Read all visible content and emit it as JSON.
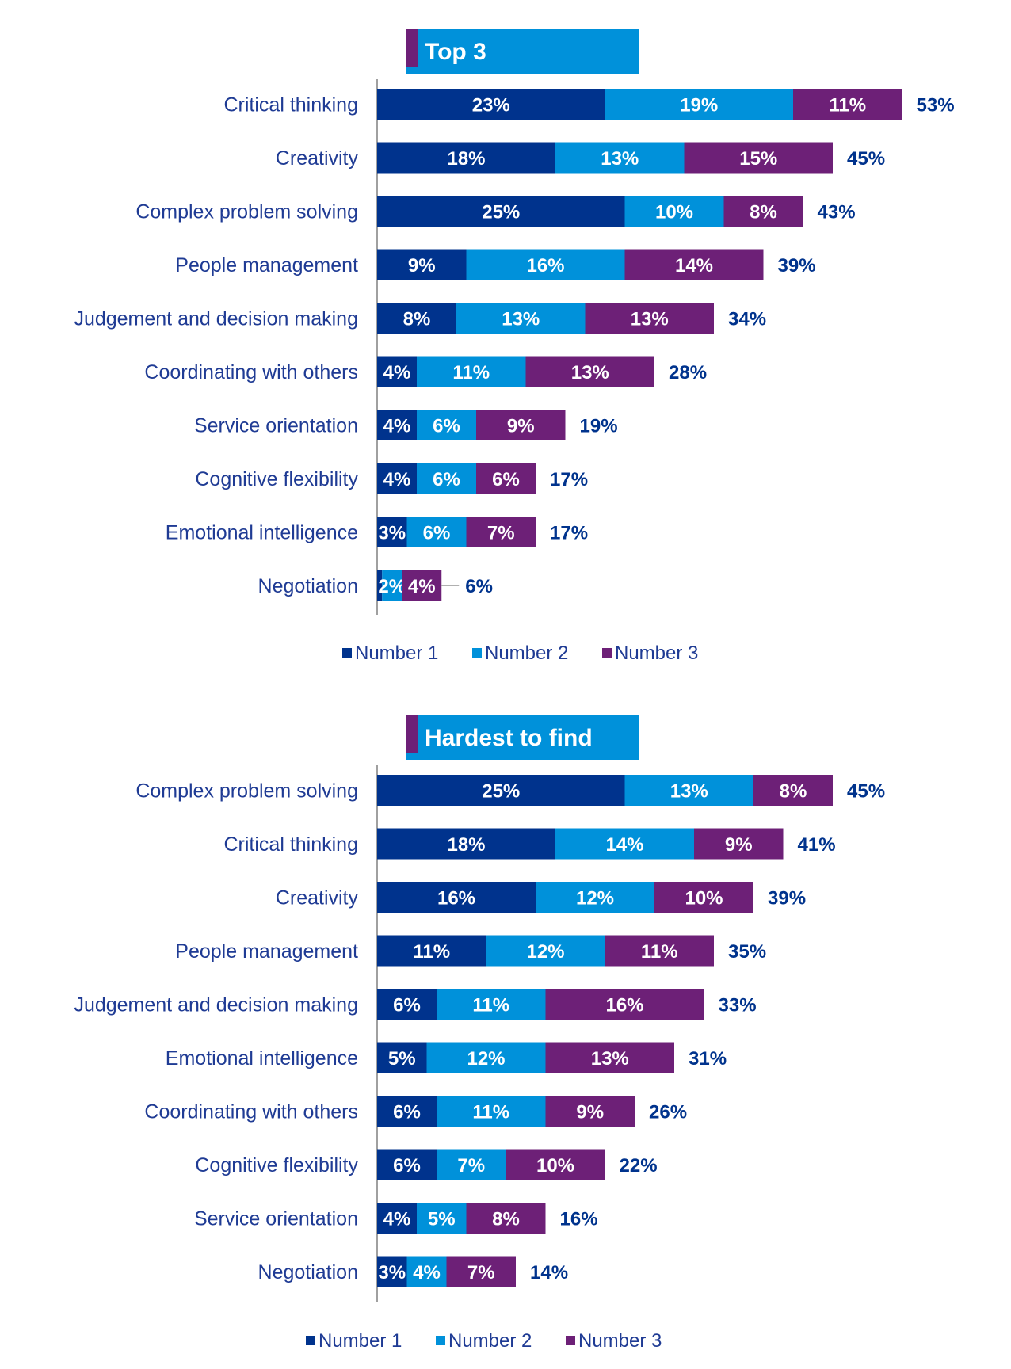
{
  "colors": {
    "number1": "#00338d",
    "number2": "#0091da",
    "number3": "#6d2077",
    "label_text": "#1f3b94",
    "total_text": "#00338d"
  },
  "chart_data": [
    {
      "type": "bar",
      "orientation": "horizontal",
      "stacked": true,
      "title": "Top 3",
      "categories": [
        "Critical thinking",
        "Creativity",
        "Complex problem solving",
        "People management",
        "Judgement and decision making",
        "Coordinating with others",
        "Service orientation",
        "Cognitive flexibility",
        "Emotional intelligence",
        "Negotiation"
      ],
      "series": [
        {
          "name": "Number 1",
          "values": [
            23,
            18,
            25,
            9,
            8,
            4,
            4,
            4,
            3,
            0.5
          ]
        },
        {
          "name": "Number 2",
          "values": [
            19,
            13,
            10,
            16,
            13,
            11,
            6,
            6,
            6,
            2
          ]
        },
        {
          "name": "Number 3",
          "values": [
            11,
            15,
            8,
            14,
            13,
            13,
            9,
            6,
            7,
            4
          ]
        }
      ],
      "segment_labels": [
        [
          "23%",
          "18%",
          "25%",
          "9%",
          "8%",
          "4%",
          "4%",
          "4%",
          "3%",
          ""
        ],
        [
          "19%",
          "13%",
          "10%",
          "16%",
          "13%",
          "11%",
          "6%",
          "6%",
          "6%",
          "2%"
        ],
        [
          "11%",
          "15%",
          "8%",
          "14%",
          "13%",
          "13%",
          "9%",
          "6%",
          "7%",
          "4%"
        ]
      ],
      "totals": [
        "53%",
        "45%",
        "43%",
        "39%",
        "34%",
        "28%",
        "19%",
        "17%",
        "17%",
        "6%"
      ],
      "unit": "%",
      "legend": [
        "Number 1",
        "Number 2",
        "Number 3"
      ],
      "legend_position": "bottom",
      "grid": false
    },
    {
      "type": "bar",
      "orientation": "horizontal",
      "stacked": true,
      "title": "Hardest to find",
      "categories": [
        "Complex problem solving",
        "Critical thinking",
        "Creativity",
        "People management",
        "Judgement and decision making",
        "Emotional intelligence",
        "Coordinating with others",
        "Cognitive flexibility",
        "Service orientation",
        "Negotiation"
      ],
      "series": [
        {
          "name": "Number 1",
          "values": [
            25,
            18,
            16,
            11,
            6,
            5,
            6,
            6,
            4,
            3
          ]
        },
        {
          "name": "Number 2",
          "values": [
            13,
            14,
            12,
            12,
            11,
            12,
            11,
            7,
            5,
            4
          ]
        },
        {
          "name": "Number 3",
          "values": [
            8,
            9,
            10,
            11,
            16,
            13,
            9,
            10,
            8,
            7
          ]
        }
      ],
      "segment_labels": [
        [
          "25%",
          "18%",
          "16%",
          "11%",
          "6%",
          "5%",
          "6%",
          "6%",
          "4%",
          "3%"
        ],
        [
          "13%",
          "14%",
          "12%",
          "12%",
          "11%",
          "12%",
          "11%",
          "7%",
          "5%",
          "4%"
        ],
        [
          "8%",
          "9%",
          "10%",
          "11%",
          "16%",
          "13%",
          "9%",
          "10%",
          "8%",
          "7%"
        ]
      ],
      "totals": [
        "45%",
        "41%",
        "39%",
        "35%",
        "33%",
        "31%",
        "26%",
        "22%",
        "16%",
        "14%"
      ],
      "unit": "%",
      "legend": [
        "Number 1",
        "Number 2",
        "Number 3"
      ],
      "legend_position": "bottom",
      "grid": false
    }
  ]
}
